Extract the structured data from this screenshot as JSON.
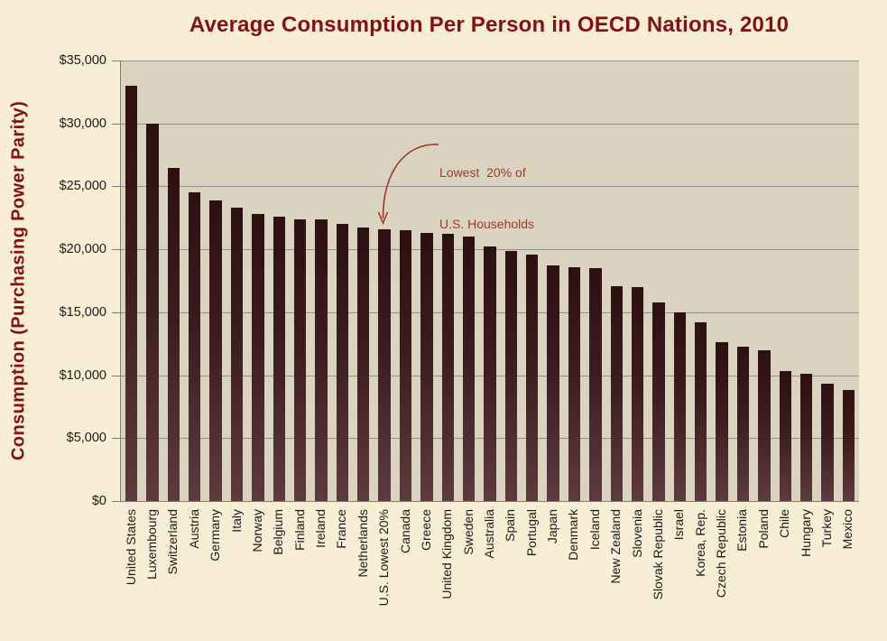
{
  "chart_data": {
    "type": "bar",
    "title": "Average Consumption Per Person in OECD Nations, 2010",
    "ylabel": "Consumption (Purchasing Power Parity)",
    "xlabel": "",
    "ylim": [
      0,
      35000
    ],
    "y_tick_step": 5000,
    "y_ticks": [
      "$0",
      "$5,000",
      "$10,000",
      "$15,000",
      "$20,000",
      "$25,000",
      "$30,000",
      "$35,000"
    ],
    "grid": "horizontal",
    "legend": "none",
    "categories": [
      "United States",
      "Luxembourg",
      "Switzerland",
      "Austria",
      "Germany",
      "Italy",
      "Norway",
      "Belgium",
      "Finland",
      "Ireland",
      "France",
      "Netherlands",
      "U.S. Lowest 20%",
      "Canada",
      "Greece",
      "United Kingdom",
      "Sweden",
      "Australia",
      "Spain",
      "Portugal",
      "Japan",
      "Denmark",
      "Iceland",
      "New Zealand",
      "Slovenia",
      "Slovak Republic",
      "Israel",
      "Korea, Rep.",
      "Czech Republic",
      "Estonia",
      "Poland",
      "Chile",
      "Hungary",
      "Turkey",
      "Mexico"
    ],
    "values": [
      33000,
      30000,
      26500,
      24500,
      23900,
      23300,
      22800,
      22600,
      22400,
      22350,
      22000,
      21700,
      21600,
      21500,
      21300,
      21200,
      21000,
      20200,
      19900,
      19600,
      18700,
      18600,
      18500,
      17100,
      17000,
      15800,
      15000,
      14200,
      12600,
      12300,
      12000,
      10300,
      10100,
      9300,
      8800
    ],
    "annotation": {
      "line1": "Lowest  20% of",
      "line2": "U.S. Households",
      "target_category": "U.S. Lowest 20%"
    },
    "colors": {
      "page_bg": "#f8eed5",
      "plot_bg": "#d9d3c0",
      "gridline": "#909090",
      "axis": "#7f7f7f",
      "bar_top": "#2d1011",
      "bar_bottom": "#5d3b3e",
      "title": "#821016",
      "annotation": "#9a3b28",
      "tick_text": "#1a1a1a",
      "arrow": "#a03a28"
    }
  }
}
